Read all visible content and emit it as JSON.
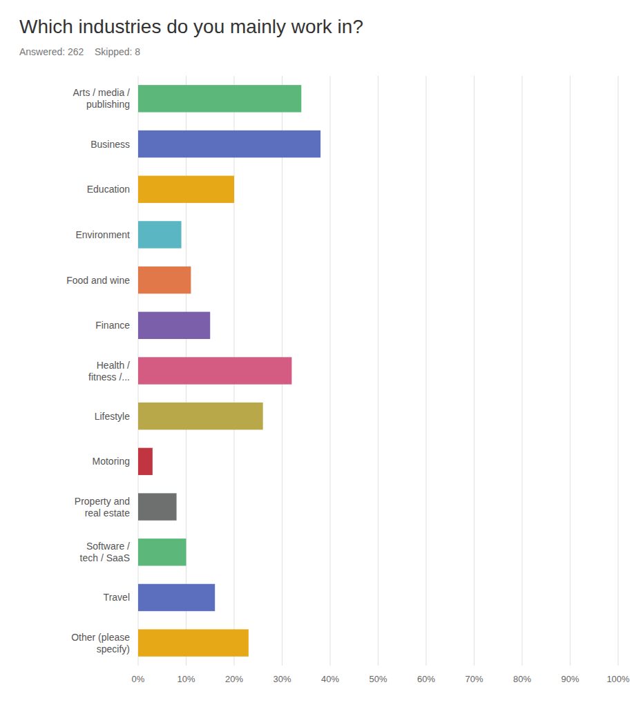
{
  "chart_data": {
    "type": "bar",
    "orientation": "horizontal",
    "title": "Which industries do you mainly work in?",
    "subtitle": "Answered: 262    Skipped: 8",
    "categories": [
      "Arts / media /\npublishing",
      "Business",
      "Education",
      "Environment",
      "Food and wine",
      "Finance",
      "Health /\nfitness /...",
      "Lifestyle",
      "Motoring",
      "Property and\nreal estate",
      "Software /\ntech / SaaS",
      "Travel",
      "Other (please\nspecify)"
    ],
    "values": [
      34,
      38,
      20,
      9,
      11,
      15,
      32,
      26,
      3,
      8,
      10,
      16,
      23
    ],
    "colors": [
      "#5cb87a",
      "#5c6fbe",
      "#e6a817",
      "#5ab6c2",
      "#e0784a",
      "#7b5faa",
      "#d45c82",
      "#b8a84a",
      "#c0353f",
      "#6e7070",
      "#5cb87a",
      "#5c6fbe",
      "#e6a817"
    ],
    "xlim": [
      0,
      100
    ],
    "xticks": [
      {
        "value": 0,
        "label": "0%"
      },
      {
        "value": 10,
        "label": "10%"
      },
      {
        "value": 20,
        "label": "20%"
      },
      {
        "value": 30,
        "label": "30%"
      },
      {
        "value": 40,
        "label": "40%"
      },
      {
        "value": 50,
        "label": "50%"
      },
      {
        "value": 60,
        "label": "60%"
      },
      {
        "value": 70,
        "label": "70%"
      },
      {
        "value": 80,
        "label": "80%"
      },
      {
        "value": 90,
        "label": "90%"
      },
      {
        "value": 100,
        "label": "100%"
      }
    ],
    "grid": true
  }
}
